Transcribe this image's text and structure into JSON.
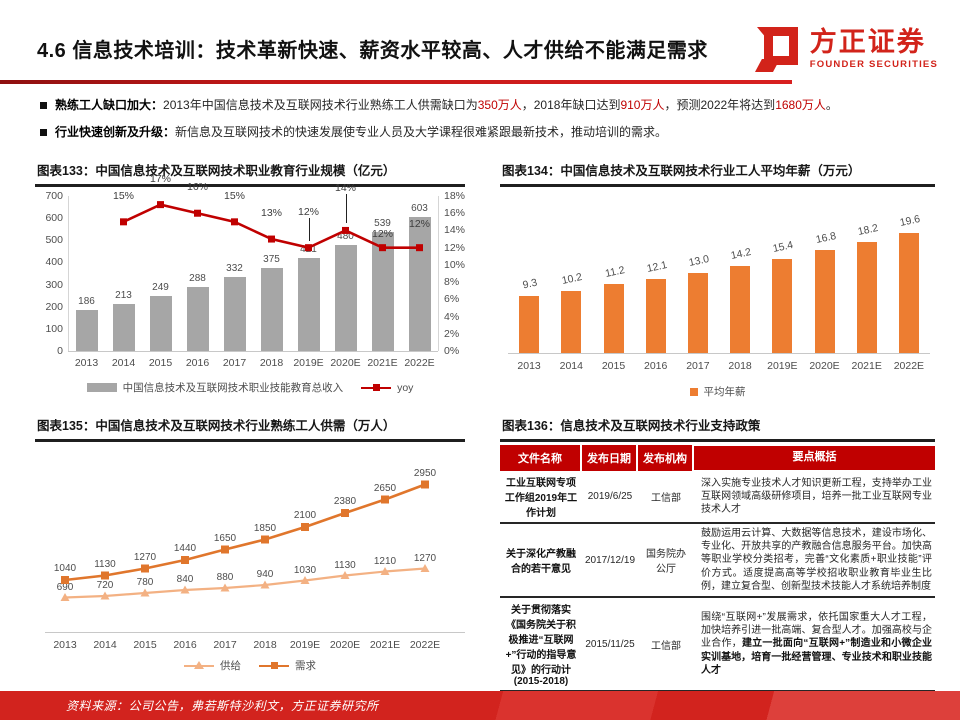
{
  "header": {
    "title": "4.6 信息技术培训：技术革新快速、薪资水平较高、人才供给不能满足需求",
    "logo_text": "方正证券",
    "logo_sub": "FOUNDER SECURITIES"
  },
  "bullets": [
    {
      "label": "熟练工人缺口加大：",
      "t1": "2013年中国信息技术及互联网技术行业熟练工人供需缺口为",
      "n1": "350万人",
      "t2": "，2018年缺口达到",
      "n2": "910万人",
      "t3": "，预测2022年将达到",
      "n3": "1680万人",
      "t4": "。"
    },
    {
      "label": "行业快速创新及升级：",
      "t1": "新信息及互联网技术的快速发展使专业人员及大学课程很难紧跟最新技术，推动培训的需求。"
    }
  ],
  "chart_data": [
    {
      "type": "bar",
      "title": "图表133：中国信息技术及互联网技术职业教育行业规模（亿元）",
      "categories": [
        "2013",
        "2014",
        "2015",
        "2016",
        "2017",
        "2018",
        "2019E",
        "2020E",
        "2021E",
        "2022E"
      ],
      "series": [
        {
          "name": "中国信息技术及互联网技术职业技能教育总收入",
          "type": "bar",
          "color": "#a6a6a6",
          "values": [
            186,
            213,
            249,
            288,
            332,
            375,
            421,
            480,
            539,
            603
          ]
        },
        {
          "name": "yoy",
          "type": "line",
          "color": "#c00000",
          "values": [
            null,
            15,
            17,
            16,
            15,
            13,
            12,
            14,
            12,
            12
          ],
          "labels": [
            null,
            "15%",
            "17%",
            "16%",
            "15%",
            "13%",
            "12%",
            "14%",
            "12%",
            "12%"
          ]
        }
      ],
      "ylabel": "",
      "xlabel": "",
      "ylim_left": [
        0,
        700
      ],
      "ytick_step_left": 100,
      "ylim_right_pct": [
        0,
        18
      ],
      "ytick_step_right_pct": 2,
      "legend_position": "bottom",
      "grid": false
    },
    {
      "type": "bar",
      "title": "图表134：中国信息技术及互联网技术行业工人平均年薪（万元）",
      "categories": [
        "2013",
        "2014",
        "2015",
        "2016",
        "2017",
        "2018",
        "2019E",
        "2020E",
        "2021E",
        "2022E"
      ],
      "values": [
        9.3,
        10.2,
        11.2,
        12.1,
        13.0,
        14.2,
        15.4,
        16.8,
        18.2,
        19.6
      ],
      "value_labels": [
        "9.3",
        "10.2",
        "11.2",
        "12.1",
        "13.0",
        "14.2",
        "15.4",
        "16.8",
        "18.2",
        "19.6"
      ],
      "legend": "平均年薪",
      "bar_color": "#ed7d31",
      "ylim": [
        0,
        25
      ],
      "legend_position": "bottom",
      "grid": false
    },
    {
      "type": "line",
      "title": "图表135：中国信息技术及互联网技术行业熟练工人供需（万人）",
      "categories": [
        "2013",
        "2014",
        "2015",
        "2016",
        "2017",
        "2018",
        "2019E",
        "2020E",
        "2021E",
        "2022E"
      ],
      "series": [
        {
          "name": "供给",
          "marker": "triangle",
          "color": "#f3b183",
          "values": [
            690,
            720,
            780,
            840,
            880,
            940,
            1030,
            1130,
            1210,
            1270
          ]
        },
        {
          "name": "需求",
          "marker": "square",
          "color": "#e0762c",
          "values": [
            1040,
            1130,
            1270,
            1440,
            1650,
            1850,
            2100,
            2380,
            2650,
            2950
          ]
        }
      ],
      "ylim": [
        0,
        3400
      ],
      "legend_position": "bottom",
      "grid": false
    }
  ],
  "policy_table": {
    "title": "图表136：信息技术及互联网技术行业支持政策",
    "headers": [
      "文件名称",
      "发布日期",
      "发布机构",
      "要点概括"
    ],
    "rows": [
      {
        "name": "工业互联网专项工作组2019年工作计划",
        "date": "2019/6/25",
        "org": "工信部",
        "summary": "深入实施专业技术人才知识更新工程，支持举办工业互联网领域高级研修项目，培养一批工业互联网专业技术人才",
        "summary_bold": ""
      },
      {
        "name": "关于深化产教融合的若干意见",
        "date": "2017/12/19",
        "org": "国务院办公厅",
        "summary": "鼓励运用云计算、大数据等信息技术，建设市场化、专业化、开放共享的产教融合信息服务平台。加快高等职业学校分类招考，完善“文化素质+职业技能”评价方式。适度提高高等学校招收职业教育毕业生比例，建立复合型、创新型技术技能人才系统培养制度",
        "summary_bold": ""
      },
      {
        "name": "关于贯彻落实《国务院关于积极推进“互联网+”行动的指导意见》的行动计(2015-2018)",
        "date": "2015/11/25",
        "org": "工信部",
        "summary": "围绕“互联网+”发展需求，依托国家重大人才工程，加快培养引进一批高端、复合型人才。加强高校与企业合作，",
        "summary_bold": "建立一批面向“互联网+”制造业和小微企业实训基地，培育一批经营管理、专业技术和职业技能人才"
      }
    ]
  },
  "footer": {
    "source": "资料来源：公司公告，弗若斯特沙利文，方正证券研究所"
  }
}
